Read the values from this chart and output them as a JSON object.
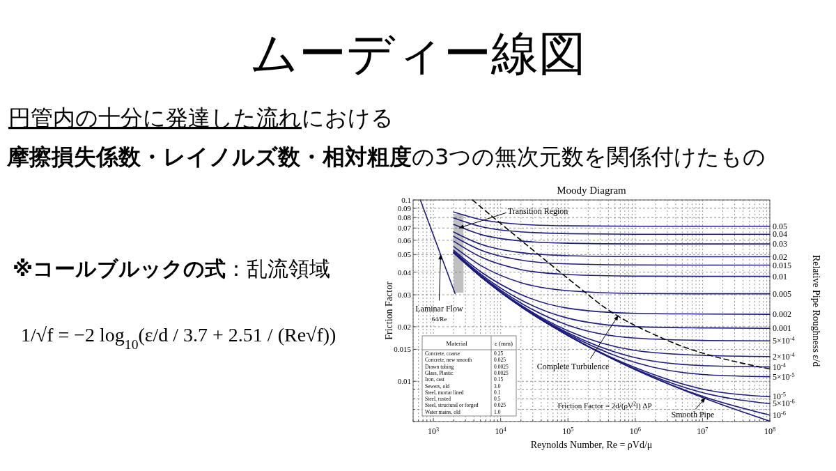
{
  "chart_data": [
    {
      "type": "other",
      "title": "ムーディー線図",
      "annotations": [
        "円管内の十分に発達した流れ",
        "における",
        "摩擦損失係数・レイノルズ数・相対粗度",
        "の3つの無次元数を関係付けたもの",
        "※コールブルックの式",
        "：乱流領域",
        "1/√f = −2 log$_{10}$(ε/d / 3.7 + 2.51 / (Re√f))"
      ]
    },
    {
      "type": "line",
      "title": "Moody Diagram",
      "xlabel": "Reynolds Number, Re = ρVd/μ",
      "ylabel": "Friction Factor",
      "y2label": "Relative Pipe Roughness ε/d",
      "log": "xy",
      "grid": true,
      "xlim": [
        500,
        100000000
      ],
      "ylim": [
        0.006,
        0.1
      ],
      "xticks": [
        {
          "value": 500,
          "label": null
        },
        {
          "value": 600,
          "label": null
        },
        {
          "value": 700,
          "label": null
        },
        {
          "value": 800,
          "label": null
        },
        {
          "value": 900,
          "label": null
        },
        {
          "value": 1000,
          "label": "10$^{3}$"
        },
        {
          "value": 2000,
          "label": null
        },
        {
          "value": 3000,
          "label": null
        },
        {
          "value": 4000,
          "label": null
        },
        {
          "value": 5000,
          "label": null
        },
        {
          "value": 6000,
          "label": null
        },
        {
          "value": 7000,
          "label": null
        },
        {
          "value": 8000,
          "label": null
        },
        {
          "value": 9000,
          "label": null
        },
        {
          "value": 10000,
          "label": "10$^{4}$"
        },
        {
          "value": 20000,
          "label": null
        },
        {
          "value": 30000,
          "label": null
        },
        {
          "value": 40000,
          "label": null
        },
        {
          "value": 50000,
          "label": null
        },
        {
          "value": 60000,
          "label": null
        },
        {
          "value": 70000,
          "label": null
        },
        {
          "value": 80000,
          "label": null
        },
        {
          "value": 90000,
          "label": null
        },
        {
          "value": 100000,
          "label": "10$^{5}$"
        },
        {
          "value": 200000,
          "label": null
        },
        {
          "value": 300000,
          "label": null
        },
        {
          "value": 400000,
          "label": null
        },
        {
          "value": 500000,
          "label": null
        },
        {
          "value": 600000,
          "label": null
        },
        {
          "value": 700000,
          "label": null
        },
        {
          "value": 800000,
          "label": null
        },
        {
          "value": 900000,
          "label": null
        },
        {
          "value": 1000000,
          "label": "10$^{6}$"
        },
        {
          "value": 2000000,
          "label": null
        },
        {
          "value": 3000000,
          "label": null
        },
        {
          "value": 4000000,
          "label": null
        },
        {
          "value": 5000000,
          "label": null
        },
        {
          "value": 6000000,
          "label": null
        },
        {
          "value": 7000000,
          "label": null
        },
        {
          "value": 8000000,
          "label": null
        },
        {
          "value": 9000000,
          "label": null
        },
        {
          "value": 10000000,
          "label": "10$^{7}$"
        },
        {
          "value": 20000000,
          "label": null
        },
        {
          "value": 30000000,
          "label": null
        },
        {
          "value": 40000000,
          "label": null
        },
        {
          "value": 50000000,
          "label": null
        },
        {
          "value": 60000000,
          "label": null
        },
        {
          "value": 70000000,
          "label": null
        },
        {
          "value": 80000000,
          "label": null
        },
        {
          "value": 90000000,
          "label": null
        },
        {
          "value": 100000000,
          "label": "10$^{8}$"
        }
      ],
      "yticks": [
        {
          "value": 0.006,
          "label": null
        },
        {
          "value": 0.007,
          "label": null
        },
        {
          "value": 0.008,
          "label": null
        },
        {
          "value": 0.009,
          "label": null
        },
        0.01,
        0.015,
        0.02,
        0.03,
        0.04,
        0.05,
        0.06,
        0.07,
        0.08,
        0.09,
        0.1
      ],
      "x": [
        2000,
        5000,
        20000,
        100000,
        1000000,
        10000000,
        100000000
      ],
      "bands": [
        {
          "axis": "x",
          "from": 2000,
          "to": 2800,
          "color": "#b0b0b0"
        }
      ],
      "series": [
        {
          "name": "0.05",
          "color": "#1c1c80",
          "values": [
            0.0858,
            0.078,
            0.0734,
            0.072,
            0.0716,
            0.0716,
            0.0716
          ]
        },
        {
          "name": "0.04",
          "color": "#1c1c80",
          "values": [
            0.0797,
            0.0715,
            0.0667,
            0.0652,
            0.0647,
            0.0647,
            0.0647
          ]
        },
        {
          "name": "0.03",
          "color": "#1c1c80",
          "values": [
            0.0733,
            0.0646,
            0.0594,
            0.0577,
            0.0572,
            0.0572,
            0.0572
          ]
        },
        {
          "name": "0.02",
          "color": "#1c1c80",
          "values": [
            0.0666,
            0.0571,
            0.0512,
            0.0493,
            0.0487,
            0.0486,
            0.0486
          ]
        },
        {
          "name": "0.015",
          "color": "#1c1c80",
          "values": [
            0.063,
            0.053,
            0.0466,
            0.0444,
            0.0438,
            0.0437,
            0.0437
          ]
        },
        {
          "name": "0.01",
          "color": "#1c1c80",
          "values": [
            0.0593,
            0.0486,
            0.0413,
            0.0388,
            0.038,
            0.0379,
            0.0379
          ]
        },
        {
          "name": "0.005",
          "color": "#1c1c80",
          "values": [
            0.0553,
            0.0436,
            0.035,
            0.0316,
            0.0305,
            0.0304,
            0.0304
          ]
        },
        {
          "name": "0.002",
          "color": "#1c1c80",
          "values": [
            0.0528,
            0.0403,
            0.0301,
            0.0253,
            0.0237,
            0.0235,
            0.0234
          ]
        },
        {
          "name": "0.001",
          "color": "#1c1c80",
          "values": [
            0.052,
            0.0391,
            0.0281,
            0.0223,
            0.02,
            0.0197,
            0.0196
          ]
        },
        {
          "name": "5×10$^{-4}$",
          "color": "#1c1c80",
          "values": [
            0.0515,
            0.0385,
            0.027,
            0.0204,
            0.0173,
            0.0168,
            0.0167
          ]
        },
        {
          "name": "2×10$^{-4}$",
          "color": "#1c1c80",
          "values": [
            0.0513,
            0.0381,
            0.0263,
            0.019,
            0.0148,
            0.0139,
            0.0137
          ]
        },
        {
          "name": "10$^{-4}$",
          "color": "#1c1c80",
          "values": [
            0.0512,
            0.038,
            0.0261,
            0.0185,
            0.0135,
            0.0122,
            0.012
          ]
        },
        {
          "name": "5×10$^{-5}$",
          "color": "#1c1c80",
          "values": [
            0.0512,
            0.0379,
            0.0259,
            0.0182,
            0.0127,
            0.0109,
            0.0106
          ]
        },
        {
          "name": "10$^{-5}$",
          "color": "#1c1c80",
          "values": [
            0.0511,
            0.0379,
            0.0258,
            0.0179,
            0.0119,
            0.00906,
            0.00822
          ]
        },
        {
          "name": "5×10$^{-6}$",
          "color": "#1c1c80",
          "values": [
            0.0511,
            0.0379,
            0.0258,
            0.0179,
            0.0117,
            0.00866,
            0.00752
          ]
        },
        {
          "name": "10$^{-6}$",
          "color": "#1c1c80",
          "values": [
            0.0511,
            0.0379,
            0.0258,
            0.0179,
            0.0116,
            0.00826,
            0.00651
          ]
        },
        {
          "color": "#1c1c80",
          "values": [
            0.0511,
            0.0379,
            0.0258,
            0.0179,
            0.0116,
            0.00814,
            0.00603
          ]
        },
        {
          "color": "#1c1c80",
          "x": [
            640,
            2100
          ],
          "values": [
            0.1,
            0.0305
          ]
        },
        {
          "color": "#000000",
          "line_style": "dashed",
          "x": [
            3800,
            20000,
            170000,
            310000,
            2700000,
            100000000
          ],
          "values": [
            0.1,
            0.06,
            0.0315,
            0.0264,
            0.0171,
            0.0117
          ]
        }
      ],
      "annotations": [
        {
          "text": "Transition Region",
          "x": 2400,
          "y": 0.07
        },
        {
          "text": "Laminar Flow\n64/Re",
          "x": 1280,
          "y": 0.05
        },
        {
          "text": "Complete Turbulence",
          "x": 560000,
          "y": 0.0231
        },
        {
          "text": "Smooth Pipe",
          "x": 11000000,
          "y": 0.0081
        },
        "Friction Factor = 2d/(ρV$^{2}$l) ΔP"
      ]
    },
    {
      "type": "other",
      "annotations": [
        "Material",
        "ε (mm)",
        "Concrete, coarse",
        "0.25",
        "Concrete, new smooth",
        "0.025",
        "Drawn tubing",
        "0.0025",
        "Glass, Plastic",
        "0.0025",
        "Iron, cast",
        "0.15",
        "Sewers, old",
        "3.0",
        "Steel, mortar lined",
        "0.1",
        "Steel, rusted",
        "0.5",
        "Steel, structural or forged",
        "0.025",
        "Water mains, old",
        "1.0"
      ]
    }
  ]
}
